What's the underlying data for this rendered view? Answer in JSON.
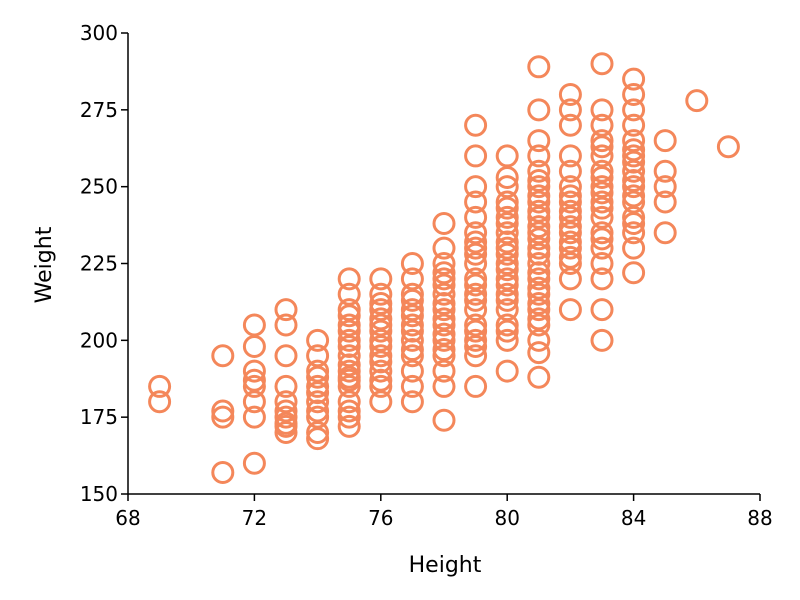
{
  "chart_data": {
    "type": "scatter",
    "title": "",
    "xlabel": "Height",
    "ylabel": "Weight",
    "xlim": [
      68,
      88
    ],
    "ylim": [
      150,
      300
    ],
    "xticks": [
      68,
      72,
      76,
      80,
      84,
      88
    ],
    "yticks": [
      150,
      175,
      200,
      225,
      250,
      275,
      300
    ],
    "grid": false,
    "legend": "none",
    "marker": "open-circle",
    "point_color": "#f4875a",
    "series": [
      {
        "x": [
          69,
          69,
          71,
          71,
          71,
          71,
          72,
          72,
          72,
          72,
          72,
          72,
          72,
          72,
          73,
          73,
          73,
          73,
          73,
          73,
          73,
          73,
          73,
          73,
          74,
          74,
          74,
          74,
          74,
          74,
          74,
          74,
          74,
          74,
          74,
          75,
          75,
          75,
          75,
          75,
          75,
          75,
          75,
          75,
          75,
          75,
          75,
          75,
          75,
          75,
          75,
          75,
          75,
          76,
          76,
          76,
          76,
          76,
          76,
          76,
          76,
          76,
          76,
          76,
          76,
          76,
          76,
          76,
          77,
          77,
          77,
          77,
          77,
          77,
          77,
          77,
          77,
          77,
          77,
          77,
          77,
          77,
          78,
          78,
          78,
          78,
          78,
          78,
          78,
          78,
          78,
          78,
          78,
          78,
          78,
          78,
          78,
          78,
          78,
          78,
          79,
          79,
          79,
          79,
          79,
          79,
          79,
          79,
          79,
          79,
          79,
          79,
          79,
          79,
          79,
          79,
          79,
          79,
          79,
          79,
          79,
          80,
          80,
          80,
          80,
          80,
          80,
          80,
          80,
          80,
          80,
          80,
          80,
          80,
          80,
          80,
          80,
          80,
          80,
          80,
          80,
          80,
          80,
          81,
          81,
          81,
          81,
          81,
          81,
          81,
          81,
          81,
          81,
          81,
          81,
          81,
          81,
          81,
          81,
          81,
          81,
          81,
          81,
          81,
          81,
          81,
          81,
          81,
          81,
          81,
          81,
          82,
          82,
          82,
          82,
          82,
          82,
          82,
          82,
          82,
          82,
          82,
          82,
          82,
          82,
          82,
          82,
          82,
          82,
          83,
          83,
          83,
          83,
          83,
          83,
          83,
          83,
          83,
          83,
          83,
          83,
          83,
          83,
          83,
          83,
          83,
          83,
          83,
          83,
          84,
          84,
          84,
          84,
          84,
          84,
          84,
          84,
          84,
          84,
          84,
          84,
          84,
          84,
          84,
          84,
          84,
          84,
          85,
          85,
          85,
          85,
          85,
          86,
          87
        ],
        "y": [
          185,
          180,
          195,
          177,
          175,
          157,
          205,
          198,
          190,
          187,
          185,
          180,
          175,
          160,
          210,
          205,
          195,
          185,
          180,
          177,
          175,
          173,
          170,
          172,
          200,
          195,
          190,
          188,
          185,
          183,
          180,
          177,
          175,
          170,
          168,
          220,
          215,
          210,
          205,
          200,
          198,
          195,
          190,
          187,
          185,
          180,
          175,
          172,
          177,
          188,
          192,
          203,
          208,
          220,
          215,
          210,
          207,
          205,
          200,
          195,
          190,
          187,
          185,
          180,
          212,
          203,
          198,
          193,
          225,
          220,
          215,
          210,
          205,
          200,
          197,
          195,
          190,
          185,
          180,
          203,
          208,
          213,
          238,
          230,
          225,
          220,
          215,
          210,
          205,
          200,
          195,
          190,
          185,
          174,
          218,
          222,
          207,
          212,
          197,
          202,
          270,
          260,
          250,
          245,
          240,
          235,
          230,
          225,
          220,
          215,
          210,
          205,
          200,
          198,
          195,
          185,
          228,
          232,
          218,
          213,
          203,
          260,
          253,
          250,
          245,
          240,
          235,
          230,
          225,
          220,
          215,
          210,
          205,
          200,
          190,
          238,
          243,
          228,
          218,
          223,
          232,
          213,
          203,
          289,
          275,
          265,
          260,
          255,
          250,
          245,
          240,
          235,
          230,
          225,
          220,
          215,
          210,
          205,
          200,
          196,
          188,
          252,
          247,
          242,
          237,
          233,
          228,
          222,
          217,
          207,
          212,
          280,
          275,
          270,
          260,
          255,
          250,
          245,
          240,
          235,
          230,
          225,
          220,
          210,
          232,
          237,
          227,
          242,
          247,
          290,
          275,
          270,
          265,
          260,
          255,
          250,
          245,
          240,
          235,
          230,
          225,
          220,
          210,
          200,
          253,
          248,
          243,
          263,
          233,
          285,
          280,
          275,
          270,
          265,
          260,
          255,
          250,
          245,
          240,
          235,
          230,
          222,
          258,
          252,
          247,
          262,
          238,
          265,
          255,
          250,
          245,
          235,
          278,
          263
        ]
      }
    ]
  }
}
